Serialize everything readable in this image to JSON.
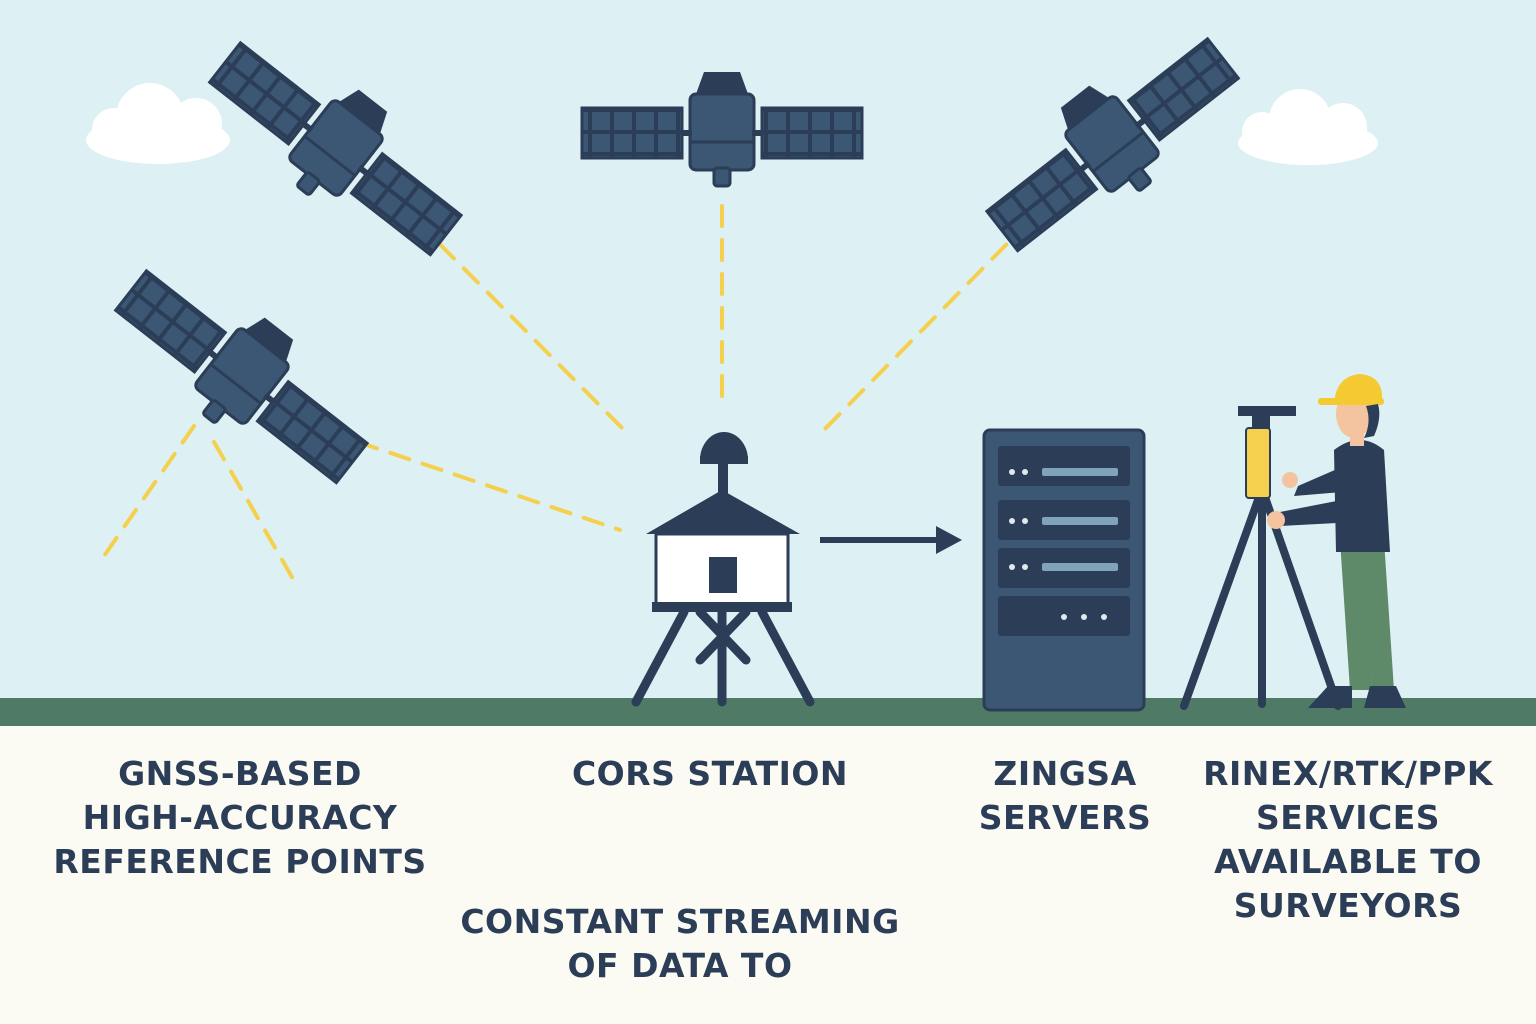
{
  "colors": {
    "sky": "#ddf0f4",
    "ground_strip": "#4e7a66",
    "ground": "#fbfaf3",
    "navy": "#2b3d57",
    "satellite_body": "#3b5774",
    "signal": "#f5d04f",
    "server": "#3b5774",
    "server_led": "#dfe9ee",
    "hard_hat": "#f5c932",
    "trousers": "#5f8a6a"
  },
  "icons": {
    "satellites": [
      "satellite-icon",
      "satellite-icon",
      "satellite-icon",
      "satellite-icon"
    ],
    "station": "cors-station-icon",
    "server": "server-rack-icon",
    "surveyor": "surveyor-icon",
    "arrow": "arrow-right-icon"
  },
  "labels": {
    "gnss": [
      "GNSS-BASED",
      "HIGH-ACCURACY",
      "REFERENCE POINTS"
    ],
    "cors": [
      "CORS STATION"
    ],
    "streaming": [
      "CONSTANT STREAMING",
      "OF DATA TO"
    ],
    "servers": [
      "ZINGSA",
      "SERVERS"
    ],
    "services": [
      "RINEX/RTK/PPK",
      "SERVICES",
      "AVAILABLE TO",
      "SURVEYORS"
    ]
  }
}
